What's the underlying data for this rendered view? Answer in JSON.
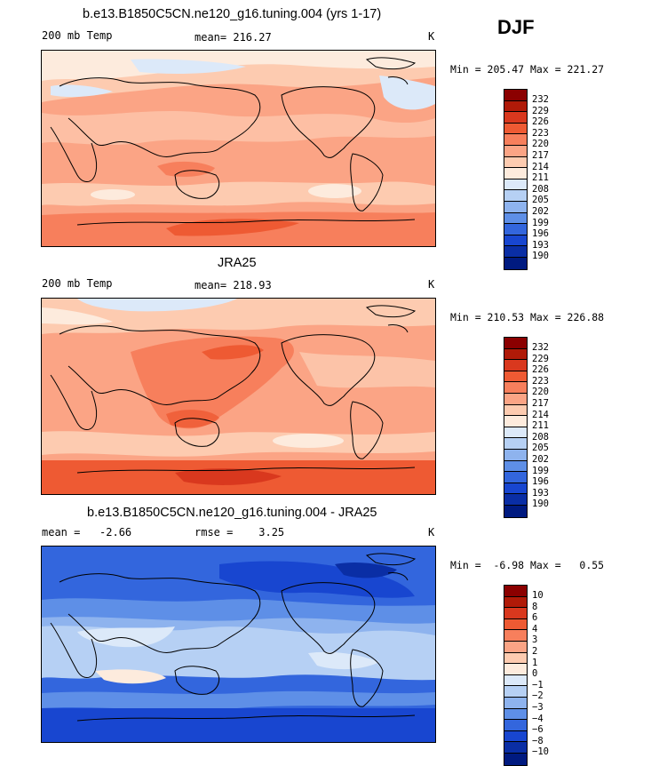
{
  "season_label": "DJF",
  "panels": [
    {
      "title": "b.e13.B1850C5CN.ne120_g16.tuning.004 (yrs 1-17)",
      "left_text": "200 mb Temp",
      "mid_text": "mean= 216.27",
      "right_text": "K",
      "minmax": "Min = 205.47 Max = 221.27",
      "colorbar_labels": [
        "232",
        "229",
        "226",
        "223",
        "220",
        "217",
        "214",
        "211",
        "208",
        "205",
        "202",
        "199",
        "196",
        "193",
        "190"
      ],
      "colorbar_colors": [
        "#8b0000",
        "#b01a08",
        "#d9381e",
        "#ee5a33",
        "#f77f5c",
        "#fba485",
        "#fdcbb0",
        "#fdebdd",
        "#dce9f9",
        "#b6d0f4",
        "#8eb3ee",
        "#5e8fe7",
        "#3366dd",
        "#1846d0",
        "#0a2ea5",
        "#001a80"
      ]
    },
    {
      "title": "JRA25",
      "left_text": "200 mb Temp",
      "mid_text": "mean= 218.93",
      "right_text": "K",
      "minmax": "Min = 210.53 Max = 226.88",
      "colorbar_labels": [
        "232",
        "229",
        "226",
        "223",
        "220",
        "217",
        "214",
        "211",
        "208",
        "205",
        "202",
        "199",
        "196",
        "193",
        "190"
      ],
      "colorbar_colors": [
        "#8b0000",
        "#b01a08",
        "#d9381e",
        "#ee5a33",
        "#f77f5c",
        "#fba485",
        "#fdcbb0",
        "#fdebdd",
        "#dce9f9",
        "#b6d0f4",
        "#8eb3ee",
        "#5e8fe7",
        "#3366dd",
        "#1846d0",
        "#0a2ea5",
        "#001a80"
      ]
    },
    {
      "title": "b.e13.B1850C5CN.ne120_g16.tuning.004 - JRA25",
      "left_text": "mean =   -2.66",
      "mid_text": "rmse =    3.25",
      "right_text": "K",
      "minmax": "Min =  -6.98 Max =   0.55",
      "colorbar_labels": [
        "10",
        "8",
        "6",
        "4",
        "3",
        "2",
        "1",
        "0",
        "−1",
        "−2",
        "−3",
        "−4",
        "−6",
        "−8",
        "−10"
      ],
      "colorbar_colors": [
        "#8b0000",
        "#b01a08",
        "#d9381e",
        "#ee5a33",
        "#f77f5c",
        "#fba485",
        "#fdcbb0",
        "#fdebdd",
        "#dce9f9",
        "#b6d0f4",
        "#8eb3ee",
        "#5e8fe7",
        "#3366dd",
        "#1846d0",
        "#0a2ea5",
        "#001a80"
      ]
    }
  ]
}
